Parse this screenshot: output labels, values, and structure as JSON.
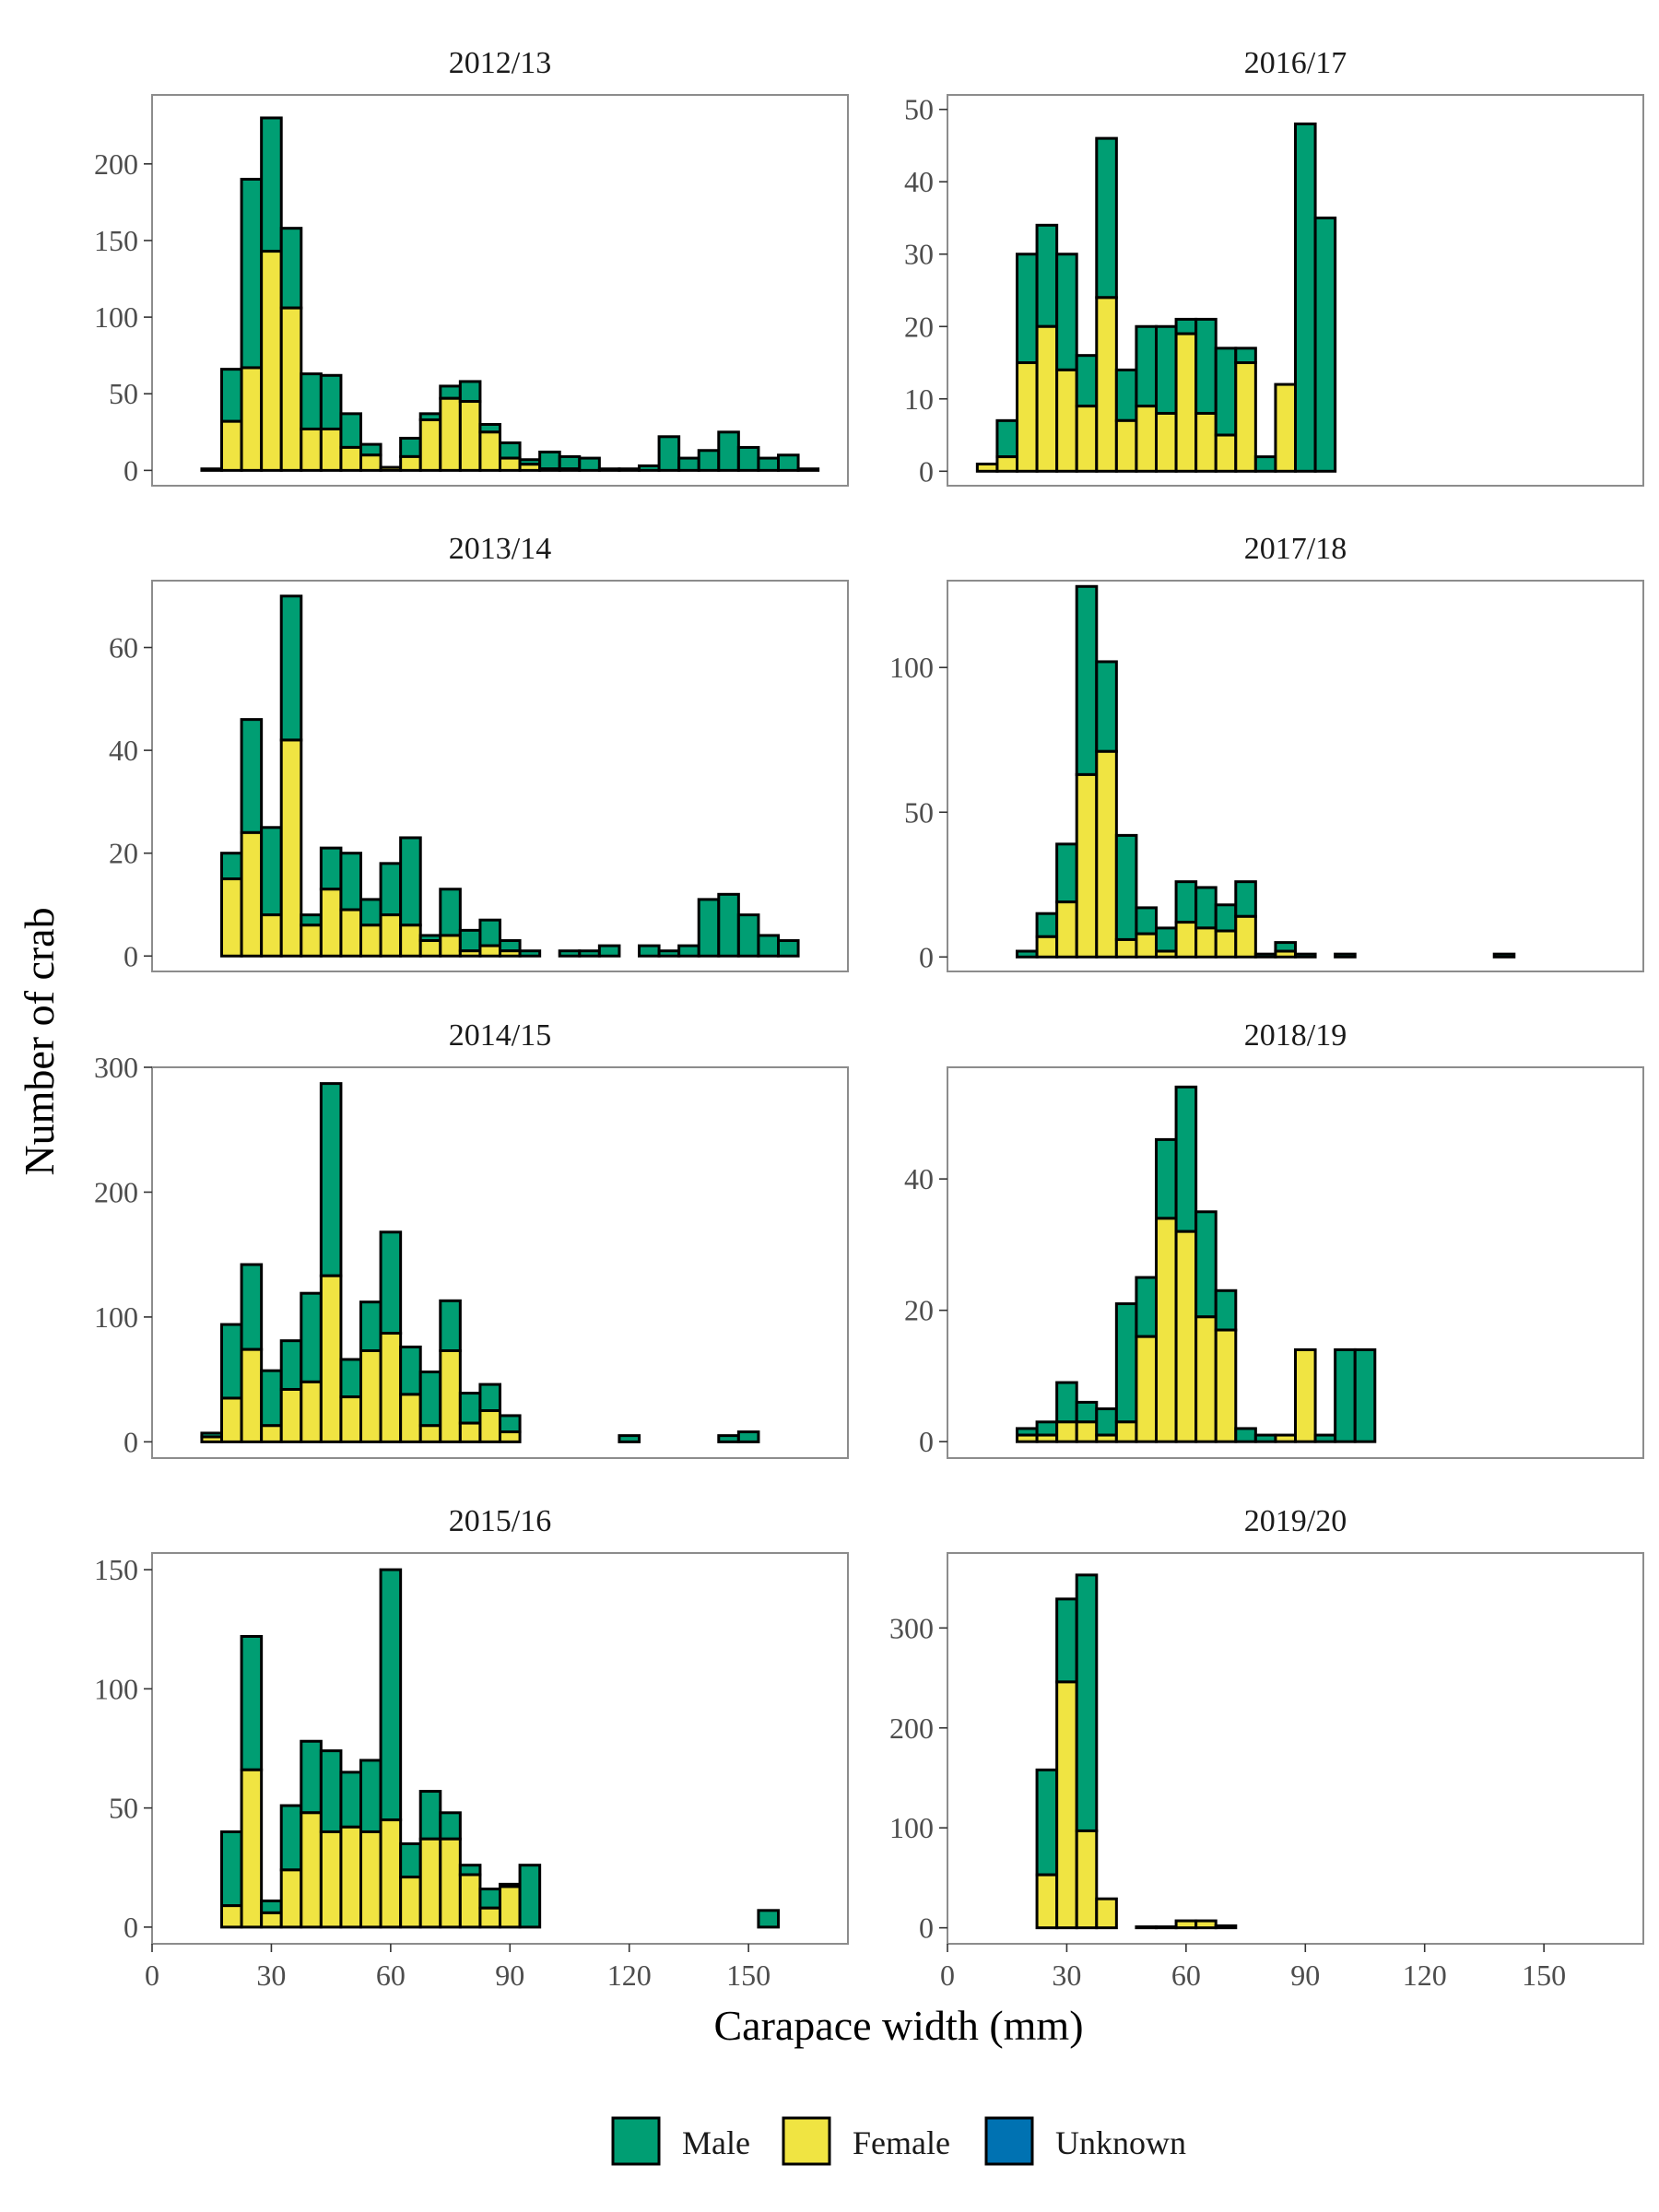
{
  "chart_data": {
    "type": "bar",
    "stacked": true,
    "xlabel": "Carapace width (mm)",
    "ylabel": "Number of crab",
    "xlim": [
      0,
      175
    ],
    "x_ticks": [
      0,
      30,
      60,
      90,
      120,
      150
    ],
    "bin_width": 5,
    "series_names": [
      "Male",
      "Female",
      "Unknown"
    ],
    "colors": {
      "Male": "#009E73",
      "Female": "#F0E442",
      "Unknown": "#0072B2"
    },
    "grid": false,
    "legend_position": "bottom",
    "panels": [
      {
        "title": "2012/13",
        "ylim": [
          -10,
          245
        ],
        "y_ticks": [
          0,
          50,
          100,
          150,
          200
        ],
        "x": [
          15,
          20,
          25,
          30,
          35,
          40,
          45,
          50,
          55,
          60,
          65,
          70,
          75,
          80,
          85,
          90,
          95,
          100,
          105,
          110,
          115,
          120,
          125,
          130,
          135,
          140,
          145,
          150,
          155,
          160,
          165
        ],
        "female": [
          1,
          32,
          67,
          143,
          106,
          27,
          27,
          15,
          10,
          2,
          9,
          33,
          47,
          45,
          25,
          8,
          4,
          1,
          1,
          0,
          0,
          0,
          0,
          0,
          0,
          0,
          0,
          0,
          0,
          0,
          0
        ],
        "total": [
          1,
          66,
          190,
          230,
          158,
          63,
          62,
          37,
          17,
          2,
          21,
          37,
          55,
          58,
          30,
          18,
          7,
          12,
          9,
          8,
          1,
          1,
          3,
          22,
          8,
          13,
          25,
          15,
          8,
          10,
          1
        ]
      },
      {
        "title": "2013/14",
        "ylim": [
          -3,
          73
        ],
        "y_ticks": [
          0,
          20,
          40,
          60
        ],
        "x": [
          20,
          25,
          30,
          35,
          40,
          45,
          50,
          55,
          60,
          65,
          70,
          75,
          80,
          85,
          90,
          95,
          105,
          110,
          115,
          125,
          130,
          135,
          140,
          145,
          150,
          155,
          160
        ],
        "female": [
          15,
          24,
          8,
          42,
          6,
          13,
          9,
          6,
          8,
          6,
          3,
          4,
          1,
          2,
          1,
          0,
          0,
          0,
          0,
          0,
          0,
          0,
          0,
          0,
          0,
          0,
          0
        ],
        "total": [
          20,
          46,
          25,
          70,
          8,
          21,
          20,
          11,
          18,
          23,
          4,
          13,
          5,
          7,
          3,
          1,
          1,
          1,
          2,
          2,
          1,
          2,
          11,
          12,
          8,
          4,
          3
        ]
      },
      {
        "title": "2014/15",
        "ylim": [
          -13,
          300
        ],
        "y_ticks": [
          0,
          100,
          200,
          300
        ],
        "x": [
          15,
          20,
          25,
          30,
          35,
          40,
          45,
          50,
          55,
          60,
          65,
          70,
          75,
          80,
          85,
          90,
          120,
          145,
          150
        ],
        "female": [
          4,
          35,
          74,
          13,
          42,
          48,
          133,
          36,
          73,
          87,
          38,
          13,
          73,
          15,
          25,
          8,
          0,
          0,
          0
        ],
        "total": [
          7,
          94,
          142,
          57,
          81,
          119,
          287,
          66,
          112,
          168,
          76,
          56,
          113,
          39,
          46,
          21,
          5,
          5,
          8
        ]
      },
      {
        "title": "2015/16",
        "ylim": [
          -7,
          157
        ],
        "y_ticks": [
          0,
          50,
          100,
          150
        ],
        "x": [
          20,
          25,
          30,
          35,
          40,
          45,
          50,
          55,
          60,
          65,
          70,
          75,
          80,
          85,
          90,
          95,
          155
        ],
        "female": [
          9,
          66,
          6,
          24,
          48,
          40,
          42,
          40,
          45,
          21,
          37,
          37,
          22,
          8,
          17,
          0,
          0
        ],
        "total": [
          40,
          122,
          11,
          51,
          78,
          74,
          65,
          70,
          150,
          35,
          57,
          48,
          26,
          16,
          18,
          26,
          7
        ]
      },
      {
        "title": "2016/17",
        "ylim": [
          -2,
          52
        ],
        "y_ticks": [
          0,
          10,
          20,
          30,
          40,
          50
        ],
        "x": [
          10,
          15,
          20,
          25,
          30,
          35,
          40,
          45,
          50,
          55,
          60,
          65,
          70,
          75,
          80,
          85,
          90,
          95
        ],
        "female": [
          1,
          2,
          15,
          20,
          14,
          9,
          24,
          7,
          9,
          8,
          19,
          8,
          5,
          15,
          0,
          12,
          0,
          0
        ],
        "total": [
          1,
          7,
          30,
          34,
          30,
          16,
          46,
          14,
          20,
          20,
          21,
          21,
          17,
          17,
          2,
          12,
          48,
          35
        ]
      },
      {
        "title": "2017/18",
        "ylim": [
          -5,
          130
        ],
        "y_ticks": [
          0,
          50,
          100
        ],
        "x": [
          20,
          25,
          30,
          35,
          40,
          45,
          50,
          55,
          60,
          65,
          70,
          75,
          80,
          85,
          90,
          100,
          140
        ],
        "female": [
          0,
          7,
          19,
          63,
          71,
          6,
          8,
          2,
          12,
          10,
          9,
          14,
          0,
          2,
          0,
          0,
          0
        ],
        "total": [
          2,
          15,
          39,
          128,
          102,
          42,
          17,
          10,
          26,
          24,
          18,
          26,
          1,
          5,
          1,
          1,
          1
        ]
      },
      {
        "title": "2018/19",
        "ylim": [
          -2.5,
          57
        ],
        "y_ticks": [
          0,
          20,
          40
        ],
        "x": [
          20,
          25,
          30,
          35,
          40,
          45,
          50,
          55,
          60,
          65,
          70,
          75,
          80,
          85,
          90,
          95,
          100,
          105
        ],
        "female": [
          1,
          1,
          3,
          3,
          1,
          3,
          16,
          34,
          32,
          19,
          17,
          0,
          0,
          1,
          14,
          0,
          0,
          0
        ],
        "total": [
          2,
          3,
          9,
          6,
          5,
          21,
          25,
          46,
          54,
          35,
          23,
          2,
          1,
          1,
          14,
          1,
          14,
          14
        ]
      },
      {
        "title": "2019/20",
        "ylim": [
          -16,
          375
        ],
        "y_ticks": [
          0,
          100,
          200,
          300
        ],
        "x": [
          25,
          30,
          35,
          40,
          50,
          55,
          60,
          65,
          70
        ],
        "female": [
          53,
          246,
          97,
          29,
          1,
          1,
          7,
          7,
          2
        ],
        "total": [
          158,
          329,
          353,
          29,
          1,
          1,
          7,
          7,
          2
        ]
      }
    ]
  }
}
